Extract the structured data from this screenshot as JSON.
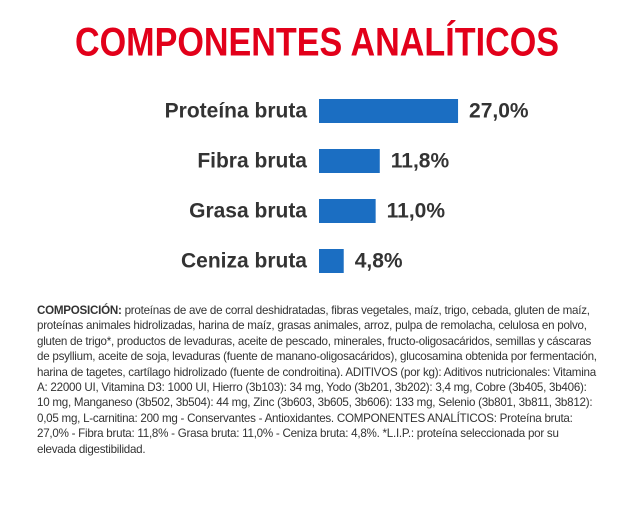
{
  "chart_data": {
    "type": "barh",
    "title": "COMPONENTES ANALÍTICOS",
    "categories": [
      "Proteína bruta",
      "Fibra bruta",
      "Grasa bruta",
      "Ceniza bruta"
    ],
    "values": [
      27.0,
      11.8,
      11.0,
      4.8
    ],
    "value_labels": [
      "27,0%",
      "11,8%",
      "11,0%",
      "4,8%"
    ],
    "color": "#1b6ec2"
  },
  "composition": {
    "heading": "COMPOSICIÓN:",
    "text": "proteínas de ave de corral deshidratadas, fibras vegetales, maíz, trigo, cebada, gluten de maíz, proteínas animales hidrolizadas, harina de maíz, grasas animales, arroz, pulpa de remolacha, celulosa en polvo, gluten de trigo*, productos de levaduras, aceite de pescado, minerales, fructo-oligosacáridos, semillas y cáscaras de psyllium, aceite de soja, levaduras (fuente de manano-oligosacáridos), glucosamina obtenida por fermentación, harina de tagetes, cartílago hidrolizado (fuente de condroitina). ADITIVOS (por kg): Aditivos nutricionales: Vitamina A: 22000 UI, Vitamina D3: 1000 UI, Hierro (3b103): 34 mg, Yodo (3b201, 3b202): 3,4 mg, Cobre (3b405, 3b406): 10 mg, Manganeso (3b502, 3b504): 44 mg, Zinc (3b603, 3b605, 3b606): 133 mg, Selenio (3b801, 3b811, 3b812): 0,05 mg, L-carnitina: 200 mg - Conservantes - Antioxidantes. COMPONENTES ANALÍTICOS: Proteína bruta: 27,0% - Fibra bruta: 11,8% - Grasa bruta: 11,0% - Ceniza bruta: 4,8%. *L.I.P.: proteína seleccionada por su elevada digestibilidad."
  }
}
